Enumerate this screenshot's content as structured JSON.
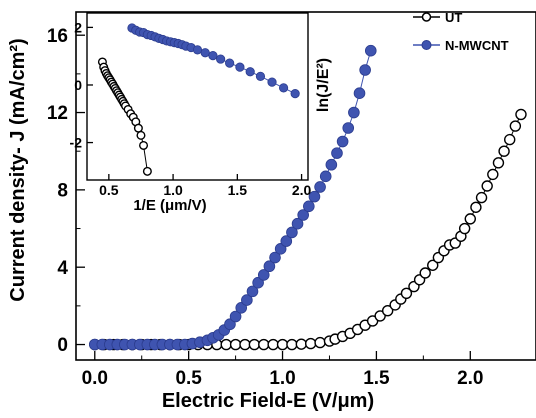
{
  "chart_data": [
    {
      "type": "scatter",
      "xlabel": "Electric Field-E (V/μm)",
      "ylabel": "Current density- J (mA/cm²)",
      "xlim": [
        -0.1,
        2.35
      ],
      "ylim": [
        -0.8,
        17.2
      ],
      "xticks": [
        0.0,
        0.5,
        1.0,
        1.5,
        2.0
      ],
      "xtick_labels": [
        "0.0",
        "0.5",
        "1.0",
        "1.5",
        "2.0"
      ],
      "yticks": [
        0,
        4,
        8,
        12,
        16
      ],
      "ytick_labels": [
        "0",
        "4",
        "8",
        "12",
        "16"
      ],
      "legend_position": "top-right",
      "series": [
        {
          "name": "UT",
          "marker": "open-circle",
          "color": "#000000",
          "x": [
            0.0,
            0.05,
            0.1,
            0.15,
            0.2,
            0.25,
            0.3,
            0.35,
            0.4,
            0.45,
            0.5,
            0.55,
            0.6,
            0.65,
            0.7,
            0.75,
            0.8,
            0.85,
            0.9,
            0.95,
            1.0,
            1.05,
            1.1,
            1.15,
            1.2,
            1.25,
            1.28,
            1.32,
            1.36,
            1.4,
            1.44,
            1.48,
            1.52,
            1.56,
            1.6,
            1.63,
            1.66,
            1.7,
            1.73,
            1.76,
            1.8,
            1.83,
            1.86,
            1.89,
            1.92,
            1.95,
            1.97,
            2.0,
            2.03,
            2.06,
            2.09,
            2.12,
            2.15,
            2.18,
            2.21,
            2.24,
            2.27
          ],
          "y": [
            0.0,
            0.0,
            0.0,
            0.0,
            0.0,
            0.0,
            0.0,
            0.0,
            0.0,
            0.0,
            0.0,
            0.0,
            0.0,
            0.0,
            0.0,
            0.0,
            0.0,
            0.0,
            0.0,
            0.0,
            0.0,
            0.0,
            0.02,
            0.05,
            0.1,
            0.18,
            0.28,
            0.42,
            0.58,
            0.78,
            1.0,
            1.22,
            1.48,
            1.75,
            2.05,
            2.35,
            2.65,
            3.0,
            3.35,
            3.7,
            4.1,
            4.5,
            4.85,
            5.15,
            5.25,
            5.6,
            6.0,
            6.5,
            7.1,
            7.6,
            8.2,
            8.8,
            9.4,
            10.0,
            10.6,
            11.3,
            11.9
          ]
        },
        {
          "name": "N-MWCNT",
          "marker": "filled-circle",
          "color": "#3f54b0",
          "x": [
            0.0,
            0.04,
            0.08,
            0.12,
            0.16,
            0.2,
            0.24,
            0.28,
            0.32,
            0.36,
            0.4,
            0.44,
            0.48,
            0.52,
            0.56,
            0.6,
            0.63,
            0.66,
            0.69,
            0.72,
            0.75,
            0.78,
            0.81,
            0.84,
            0.87,
            0.9,
            0.93,
            0.96,
            0.99,
            1.02,
            1.05,
            1.08,
            1.11,
            1.14,
            1.17,
            1.2,
            1.23,
            1.26,
            1.29,
            1.32,
            1.35,
            1.38,
            1.41,
            1.44,
            1.47
          ],
          "y": [
            0.0,
            0.0,
            0.0,
            0.0,
            0.0,
            0.0,
            0.0,
            0.0,
            0.0,
            0.0,
            0.0,
            0.0,
            0.0,
            0.05,
            0.12,
            0.22,
            0.35,
            0.5,
            0.75,
            1.05,
            1.45,
            1.9,
            2.3,
            2.75,
            3.2,
            3.6,
            4.05,
            4.5,
            4.95,
            5.35,
            5.8,
            6.25,
            6.7,
            7.15,
            7.65,
            8.15,
            8.7,
            9.3,
            9.9,
            10.5,
            11.2,
            12.0,
            13.0,
            14.2,
            15.2
          ]
        }
      ]
    },
    {
      "type": "scatter",
      "role": "inset",
      "xlabel": "1/E (μm/V)",
      "ylabel": "ln(J/E²)",
      "xlim": [
        0.33,
        2.05
      ],
      "ylim": [
        -3.3,
        2.5
      ],
      "xticks": [
        0.5,
        1.0,
        1.5,
        2.0
      ],
      "xtick_labels": [
        "0.5",
        "1.0",
        "1.5",
        "2.0"
      ],
      "yticks": [
        2,
        0,
        -2
      ],
      "ytick_labels": [
        "2",
        "0",
        "-2"
      ],
      "series": [
        {
          "name": "UT",
          "marker": "open-circle",
          "color": "#000000",
          "x": [
            0.45,
            0.46,
            0.47,
            0.48,
            0.49,
            0.5,
            0.51,
            0.52,
            0.53,
            0.54,
            0.55,
            0.56,
            0.57,
            0.58,
            0.59,
            0.6,
            0.61,
            0.62,
            0.63,
            0.65,
            0.67,
            0.69,
            0.71,
            0.73,
            0.75,
            0.77,
            0.8
          ],
          "y": [
            0.8,
            0.62,
            0.5,
            0.4,
            0.32,
            0.25,
            0.18,
            0.1,
            0.03,
            -0.05,
            -0.12,
            -0.2,
            -0.27,
            -0.35,
            -0.42,
            -0.5,
            -0.57,
            -0.65,
            -0.73,
            -0.85,
            -1.0,
            -1.12,
            -1.28,
            -1.5,
            -1.75,
            -2.1,
            -3.0
          ]
        },
        {
          "name": "N-MWCNT",
          "marker": "filled-circle",
          "color": "#3f54b0",
          "x": [
            0.68,
            0.71,
            0.74,
            0.77,
            0.8,
            0.83,
            0.86,
            0.89,
            0.92,
            0.95,
            0.98,
            1.01,
            1.04,
            1.07,
            1.1,
            1.14,
            1.19,
            1.25,
            1.31,
            1.37,
            1.44,
            1.52,
            1.6,
            1.68,
            1.77,
            1.86,
            1.95
          ],
          "y": [
            1.98,
            1.9,
            1.84,
            1.82,
            1.75,
            1.72,
            1.67,
            1.62,
            1.58,
            1.53,
            1.5,
            1.47,
            1.44,
            1.4,
            1.35,
            1.3,
            1.22,
            1.12,
            1.02,
            0.9,
            0.76,
            0.62,
            0.46,
            0.3,
            0.1,
            -0.1,
            -0.3
          ]
        }
      ]
    }
  ]
}
